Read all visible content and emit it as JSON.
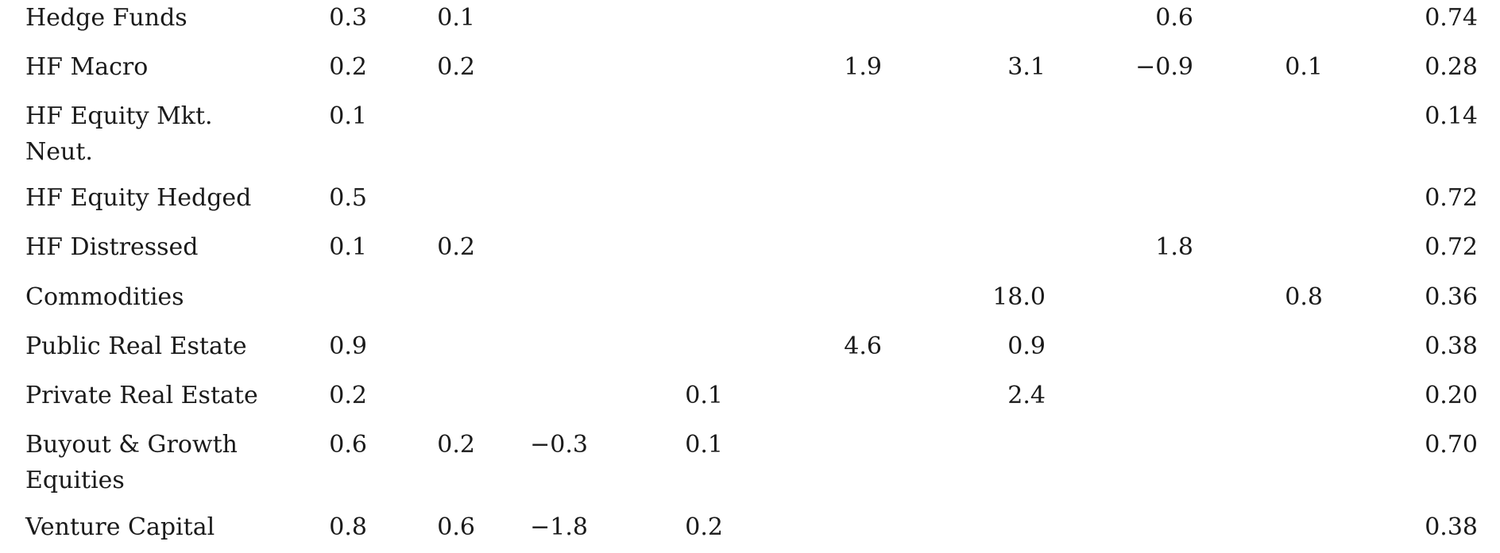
{
  "table": {
    "rows": [
      {
        "label": "Hedge Funds",
        "values": [
          "0.3",
          "0.1",
          "",
          "",
          "",
          "",
          "0.6",
          "",
          "0.74"
        ]
      },
      {
        "label": "HF Macro",
        "values": [
          "0.2",
          "0.2",
          "",
          "",
          "1.9",
          "3.1",
          "−0.9",
          "0.1",
          "0.28"
        ]
      },
      {
        "label": "HF Equity Mkt. Neut.",
        "values": [
          "0.1",
          "",
          "",
          "",
          "",
          "",
          "",
          "",
          "0.14"
        ]
      },
      {
        "label": "HF Equity Hedged",
        "values": [
          "0.5",
          "",
          "",
          "",
          "",
          "",
          "",
          "",
          "0.72"
        ]
      },
      {
        "label": "HF Distressed",
        "values": [
          "0.1",
          "0.2",
          "",
          "",
          "",
          "",
          "1.8",
          "",
          "0.72"
        ]
      },
      {
        "label": "Commodities",
        "values": [
          "",
          "",
          "",
          "",
          "",
          "18.0",
          "",
          "0.8",
          "0.36"
        ]
      },
      {
        "label": "Public Real Estate",
        "values": [
          "0.9",
          "",
          "",
          "",
          "4.6",
          "0.9",
          "",
          "",
          "0.38"
        ]
      },
      {
        "label": "Private Real Estate",
        "values": [
          "0.2",
          "",
          "",
          "0.1",
          "",
          "2.4",
          "",
          "",
          "0.20"
        ]
      },
      {
        "label": "Buyout & Growth Equities",
        "values": [
          "0.6",
          "0.2",
          "−0.3",
          "0.1",
          "",
          "",
          "",
          "",
          "0.70"
        ]
      },
      {
        "label": "Venture Capital",
        "values": [
          "0.8",
          "0.6",
          "−1.8",
          "0.2",
          "",
          "",
          "",
          "",
          "0.38"
        ]
      }
    ]
  }
}
